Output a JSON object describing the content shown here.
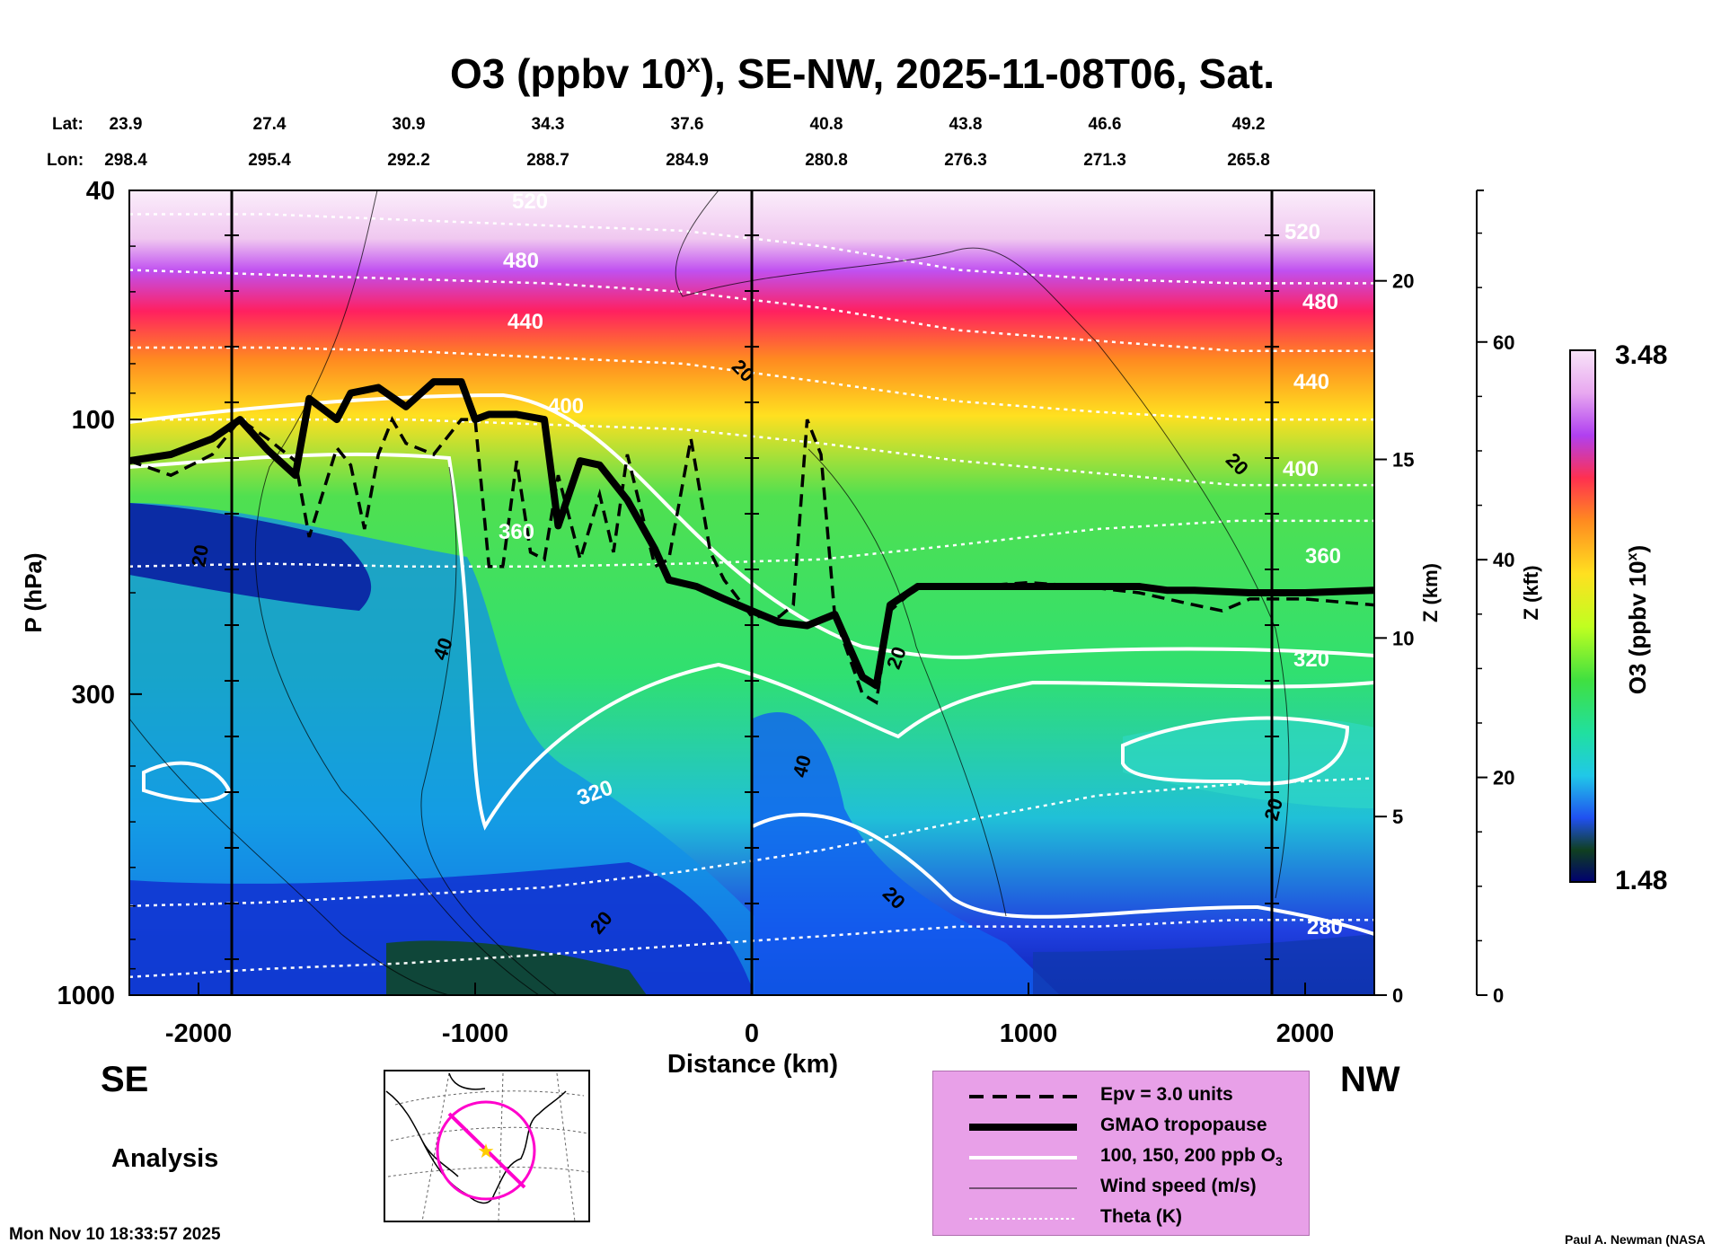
{
  "chart_data": {
    "type": "heatmap",
    "title": "O3 (ppbv 10",
    "title_superscript": "x",
    "title_rest": "), SE-NW, 2025-11-08T06, Sat.",
    "xlabel": "Distance (km)",
    "ylabel": "P (hPa)",
    "y2label": "Z (km)",
    "y3label": "Z (kft)",
    "xlim": [
      -2250,
      2250
    ],
    "ylim": [
      1000,
      40
    ],
    "x_ticks": [
      -2000,
      -1000,
      0,
      1000,
      2000
    ],
    "y_ticks": [
      40,
      100,
      300,
      1000
    ],
    "z_km_ticks": [
      0,
      5,
      10,
      15,
      20
    ],
    "z_kft_ticks": [
      0,
      20,
      40,
      60
    ],
    "lat_label": "Lat:",
    "lon_label": "Lon:",
    "lat_values": [
      "23.9",
      "27.4",
      "30.9",
      "34.3",
      "37.6",
      "40.8",
      "43.8",
      "46.6",
      "49.2"
    ],
    "lon_values": [
      "298.4",
      "295.4",
      "292.2",
      "288.7",
      "284.9",
      "280.8",
      "276.3",
      "271.3",
      "265.8"
    ],
    "colorbar": {
      "label": "O3 (ppbv 10",
      "label_sup": "x",
      "label_end": ")",
      "max_label": "3.48",
      "min_label": "1.48",
      "min": 1.48,
      "max": 3.48
    },
    "tropopause": {
      "x": [
        -2250,
        -2100,
        -1950,
        -1850,
        -1750,
        -1650,
        -1600,
        -1500,
        -1450,
        -1350,
        -1250,
        -1150,
        -1050,
        -1000,
        -950,
        -850,
        -750,
        -700,
        -620,
        -550,
        -450,
        -350,
        -300,
        -200,
        -100,
        0,
        100,
        200,
        300,
        400,
        450,
        500,
        600,
        800,
        1000,
        1200,
        1400,
        1500,
        1600,
        1800,
        2000,
        2250
      ],
      "p": [
        118,
        115,
        108,
        100,
        113,
        125,
        92,
        100,
        90,
        88,
        95,
        86,
        86,
        100,
        98,
        98,
        100,
        153,
        118,
        120,
        138,
        168,
        190,
        195,
        205,
        215,
        225,
        228,
        218,
        280,
        290,
        210,
        195,
        195,
        195,
        195,
        195,
        198,
        198,
        200,
        200,
        198
      ]
    },
    "epv": {
      "x": [
        -2250,
        -2100,
        -1950,
        -1850,
        -1750,
        -1650,
        -1600,
        -1500,
        -1450,
        -1400,
        -1350,
        -1300,
        -1250,
        -1150,
        -1050,
        -1000,
        -950,
        -900,
        -850,
        -800,
        -750,
        -700,
        -620,
        -550,
        -500,
        -450,
        -350,
        -300,
        -220,
        -150,
        -100,
        0,
        100,
        150,
        200,
        250,
        300,
        400,
        450,
        500,
        600,
        800,
        1000,
        1200,
        1400,
        1600,
        1700,
        1800,
        2000,
        2250
      ],
      "p": [
        118,
        125,
        115,
        100,
        108,
        118,
        160,
        112,
        120,
        155,
        115,
        100,
        110,
        115,
        100,
        100,
        180,
        180,
        118,
        170,
        175,
        125,
        175,
        135,
        170,
        115,
        180,
        175,
        108,
        170,
        190,
        220,
        220,
        210,
        100,
        115,
        220,
        300,
        310,
        215,
        195,
        195,
        192,
        195,
        200,
        210,
        215,
        205,
        205,
        210
      ]
    },
    "o3_contour_labels": [
      "320",
      "360",
      "400"
    ],
    "wind_labels": [
      "20",
      "40"
    ],
    "theta_labels": [
      "280",
      "320",
      "360",
      "400",
      "440",
      "480",
      "520"
    ],
    "theta_levels": [
      {
        "label": "280",
        "p": [
          930,
          900,
          880,
          850,
          820,
          790,
          760,
          760,
          740,
          740
        ]
      },
      {
        "label": "320",
        "p": [
          700,
          690,
          670,
          650,
          610,
          560,
          500,
          450,
          430,
          420
        ]
      },
      {
        "label": "360",
        "p": [
          180,
          178,
          180,
          180,
          178,
          175,
          165,
          155,
          150,
          150
        ]
      },
      {
        "label": "400",
        "p": [
          100,
          100,
          100,
          102,
          104,
          110,
          118,
          124,
          130,
          130
        ]
      },
      {
        "label": "440",
        "p": [
          75,
          75,
          76,
          78,
          80,
          86,
          93,
          97,
          100,
          100
        ]
      },
      {
        "label": "480",
        "p": [
          55,
          56,
          57,
          58,
          60,
          64,
          70,
          73,
          76,
          76
        ]
      },
      {
        "label": "520",
        "p": [
          44,
          44,
          45,
          46,
          47,
          50,
          55,
          57,
          58,
          58
        ]
      }
    ]
  },
  "direction": {
    "left": "SE",
    "right": "NW"
  },
  "analysis_label": "Analysis",
  "legend": {
    "epv": "Epv = 3.0 units",
    "tropopause": "GMAO tropopause",
    "o3_prefix": "100, 150, 200 ppb O",
    "o3_sub": "3",
    "wind": "Wind speed (m/s)",
    "theta": "Theta (K)"
  },
  "footer": {
    "date": "Mon Nov 10 18:33:57 2025",
    "credit": "Paul A. Newman (NASA"
  },
  "colors": {
    "frame": "#000000",
    "legend_bg": "#e8a0e8",
    "map_path": "#ff00cc",
    "map_star": "#ffcc00"
  }
}
